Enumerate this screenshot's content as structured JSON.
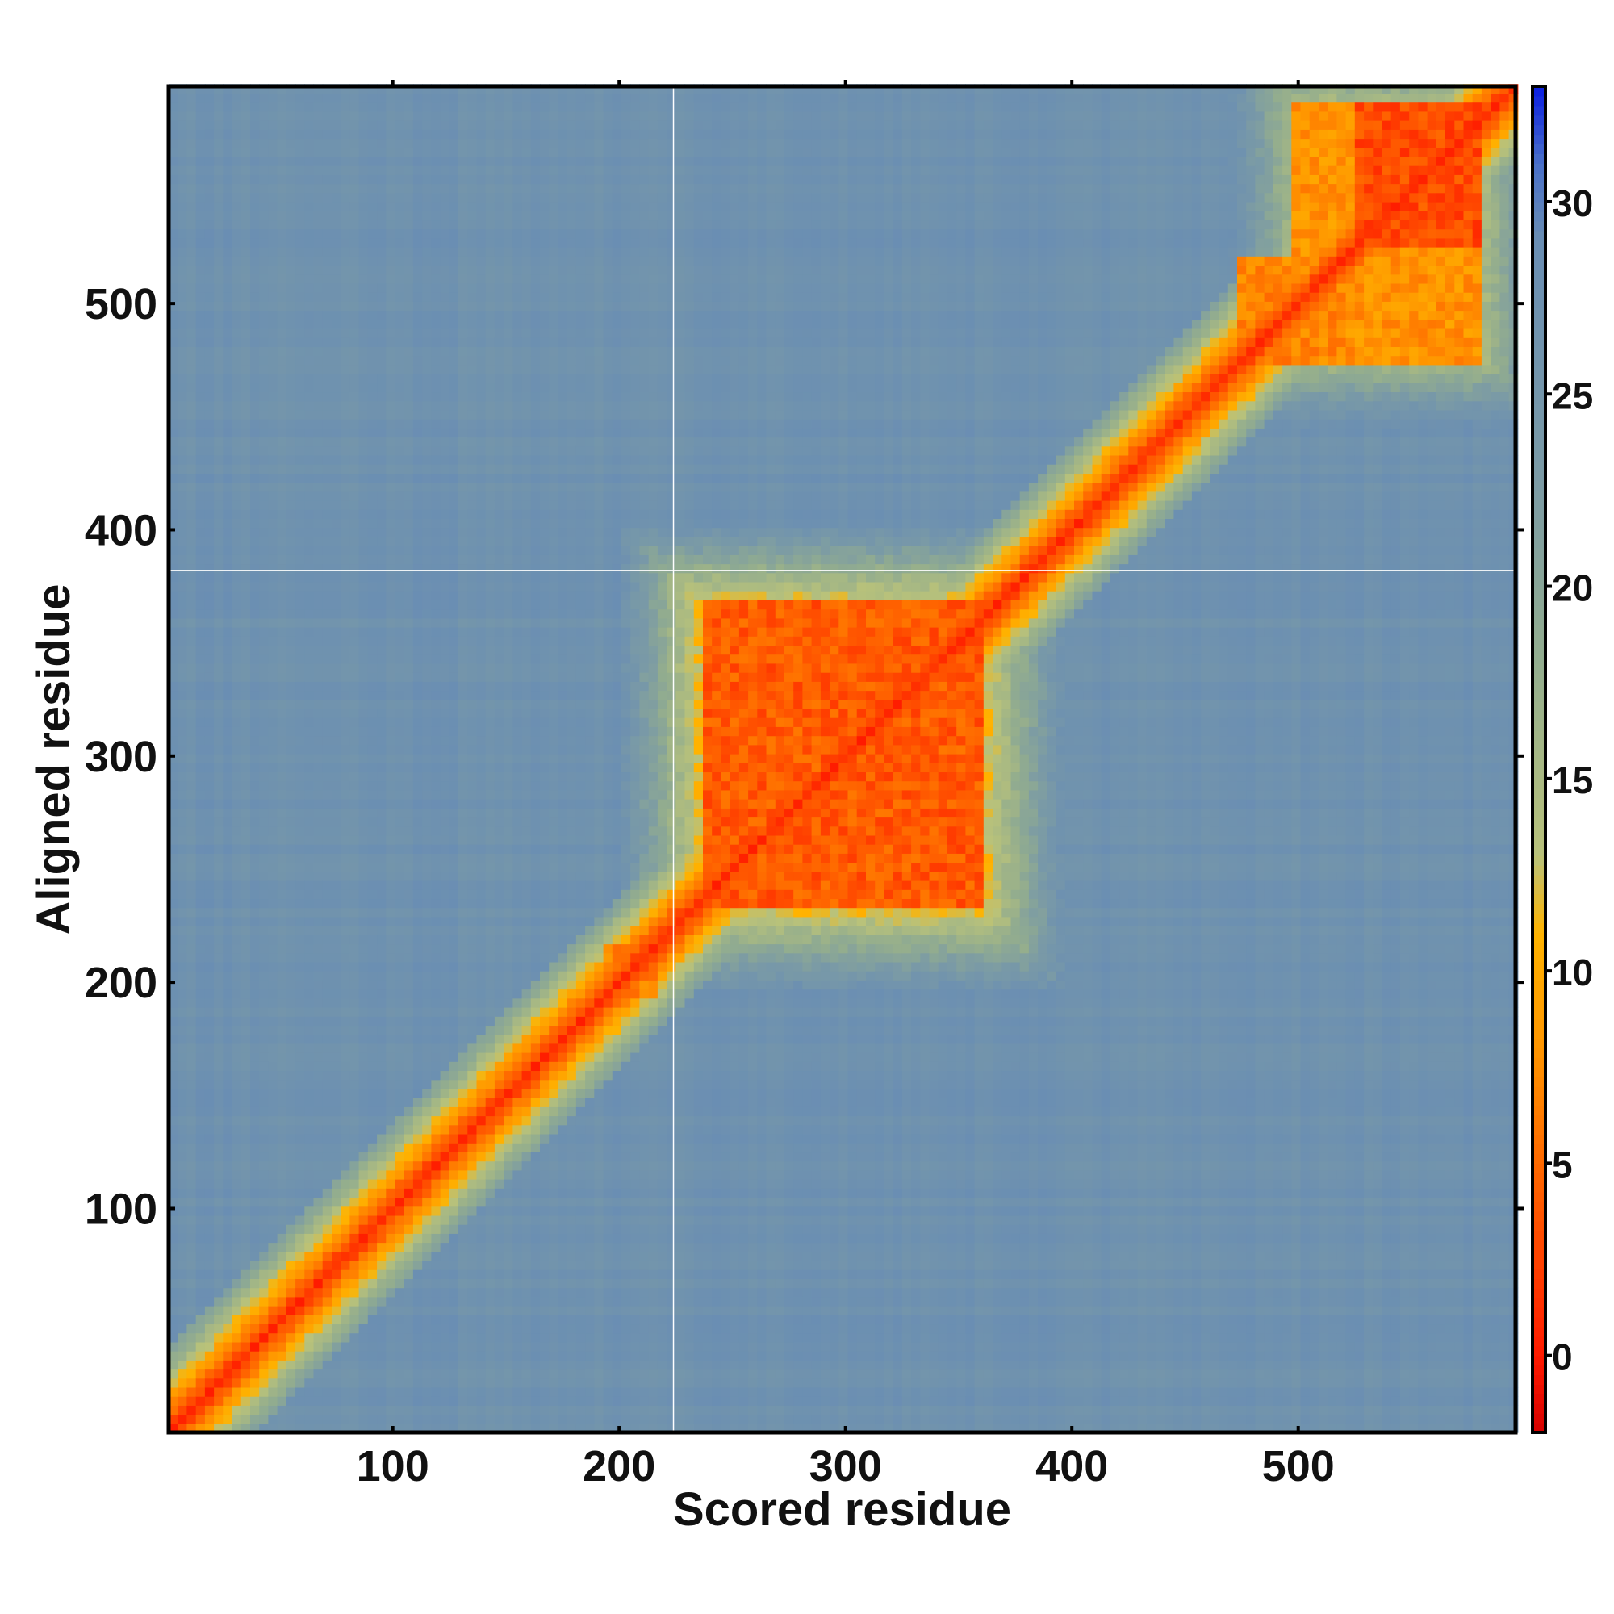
{
  "chart_data": {
    "type": "heatmap",
    "title": "",
    "xlabel": "Scored residue",
    "ylabel": "Aligned residue",
    "x_range": [
      1,
      596
    ],
    "y_range": [
      1,
      596
    ],
    "xticks": [
      100,
      200,
      300,
      400,
      500
    ],
    "yticks": [
      100,
      200,
      300,
      400,
      500
    ],
    "colorbar": {
      "range": [
        -2,
        33
      ],
      "ticks": [
        0,
        5,
        10,
        15,
        20,
        25,
        30
      ],
      "colors": [
        {
          "value": -2,
          "color": "#d40000"
        },
        {
          "value": 0,
          "color": "#ff1a00"
        },
        {
          "value": 4,
          "color": "#ff5a00"
        },
        {
          "value": 8,
          "color": "#ff9500"
        },
        {
          "value": 11,
          "color": "#ffb300"
        },
        {
          "value": 13,
          "color": "#b9c27a"
        },
        {
          "value": 18,
          "color": "#93ad8e"
        },
        {
          "value": 23,
          "color": "#7a9aa6"
        },
        {
          "value": 29,
          "color": "#6a8eb3"
        },
        {
          "value": 31,
          "color": "#4a70c8"
        },
        {
          "value": 33,
          "color": "#0a1ee0"
        }
      ]
    },
    "diagonal_value": 0,
    "background_value": 28,
    "domain_blocks": [
      {
        "x": [
          236,
          362
        ],
        "y": [
          232,
          368
        ],
        "value": 2
      },
      {
        "x": [
          472,
          520
        ],
        "y": [
          472,
          520
        ],
        "value": 5
      },
      {
        "x": [
          498,
          582
        ],
        "y": [
          475,
          590
        ],
        "value": 6
      },
      {
        "x": [
          525,
          580
        ],
        "y": [
          525,
          590
        ],
        "value": 1
      },
      {
        "x": [
          164,
          178
        ],
        "y": [
          164,
          178
        ],
        "value": 4
      },
      {
        "x": [
          194,
          218
        ],
        "y": [
          194,
          216
        ],
        "value": 5
      },
      {
        "x": [
          384,
          398
        ],
        "y": [
          384,
          398
        ],
        "value": 4
      }
    ],
    "gap_lines": {
      "x": 224,
      "y": 382
    }
  }
}
